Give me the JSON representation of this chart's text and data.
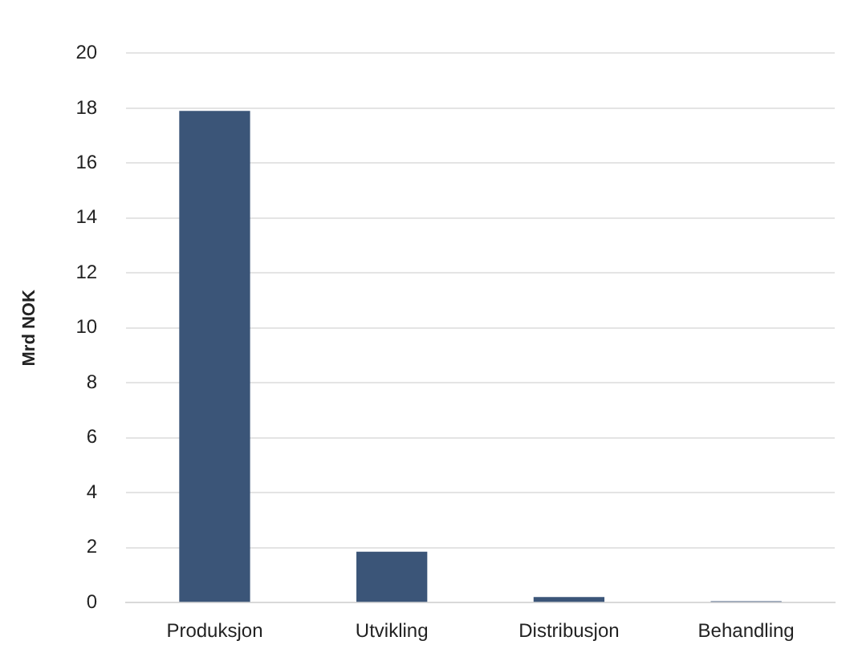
{
  "chart_data": {
    "type": "bar",
    "ylabel": "Mrd NOK",
    "categories": [
      "Produksjon",
      "Utvikling",
      "Distribusjon",
      "Behandling"
    ],
    "values": [
      17.9,
      1.85,
      0.2,
      0.05
    ],
    "color": "#3b5578",
    "ylim": [
      0,
      20
    ],
    "yticks": [
      0,
      2,
      4,
      6,
      8,
      10,
      12,
      14,
      16,
      18,
      20
    ],
    "grid": "y",
    "legend": false
  }
}
